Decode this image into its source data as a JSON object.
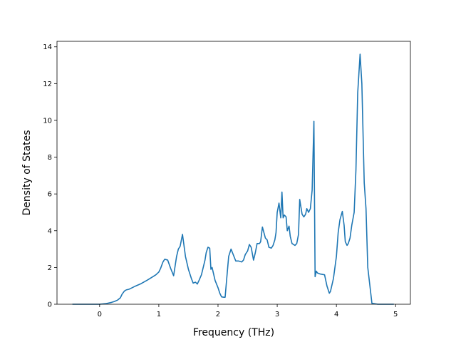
{
  "chart_data": {
    "type": "line",
    "title": "",
    "xlabel": "Frequency (THz)",
    "ylabel": "Density of States",
    "xlim": [
      -0.72,
      5.25
    ],
    "ylim": [
      0,
      14.3
    ],
    "xticks": [
      0,
      1,
      2,
      3,
      4,
      5
    ],
    "yticks": [
      0,
      2,
      4,
      6,
      8,
      10,
      12,
      14
    ],
    "xtick_labels": [
      "0",
      "1",
      "2",
      "3",
      "4",
      "5"
    ],
    "ytick_labels": [
      "0",
      "2",
      "4",
      "6",
      "8",
      "10",
      "12",
      "14"
    ],
    "grid": false,
    "legend": "none",
    "line_color": "#1f77b4",
    "series": [
      {
        "x": [
          -0.46,
          -0.3,
          -0.1,
          0.0,
          0.1,
          0.2,
          0.25,
          0.3,
          0.35,
          0.38,
          0.42,
          0.45,
          0.5,
          0.55,
          0.6,
          0.7,
          0.8,
          0.9,
          0.95,
          1.0,
          1.03,
          1.07,
          1.1,
          1.15,
          1.2,
          1.25,
          1.3,
          1.33,
          1.36,
          1.4,
          1.45,
          1.5,
          1.55,
          1.58,
          1.62,
          1.65,
          1.68,
          1.72,
          1.78,
          1.8,
          1.83,
          1.86,
          1.88,
          1.9,
          1.95,
          2.0,
          2.03,
          2.06,
          2.1,
          2.12,
          2.15,
          2.18,
          2.2,
          2.22,
          2.3,
          2.35,
          2.4,
          2.43,
          2.46,
          2.5,
          2.53,
          2.56,
          2.6,
          2.63,
          2.66,
          2.7,
          2.72,
          2.75,
          2.8,
          2.83,
          2.86,
          2.9,
          2.93,
          2.96,
          2.98,
          3.0,
          3.03,
          3.06,
          3.08,
          3.1,
          3.12,
          3.15,
          3.17,
          3.2,
          3.22,
          3.25,
          3.3,
          3.33,
          3.36,
          3.38,
          3.42,
          3.45,
          3.48,
          3.5,
          3.53,
          3.56,
          3.59,
          3.62,
          3.64,
          3.66,
          3.68,
          3.72,
          3.8,
          3.84,
          3.88,
          3.9,
          3.95,
          4.0,
          4.03,
          4.06,
          4.1,
          4.13,
          4.15,
          4.18,
          4.2,
          4.23,
          4.26,
          4.3,
          4.33,
          4.36,
          4.4,
          4.43,
          4.47,
          4.5,
          4.53,
          4.6,
          4.7,
          4.8,
          4.9,
          4.97
        ],
        "y": [
          0,
          0,
          0,
          0,
          0.03,
          0.1,
          0.15,
          0.22,
          0.35,
          0.55,
          0.72,
          0.78,
          0.82,
          0.9,
          0.98,
          1.12,
          1.3,
          1.5,
          1.6,
          1.75,
          1.95,
          2.3,
          2.45,
          2.4,
          1.95,
          1.55,
          2.6,
          3.0,
          3.15,
          3.8,
          2.6,
          1.9,
          1.4,
          1.15,
          1.2,
          1.1,
          1.3,
          1.6,
          2.4,
          2.8,
          3.1,
          3.05,
          1.9,
          2.0,
          1.3,
          0.9,
          0.6,
          0.4,
          0.38,
          0.38,
          1.5,
          2.6,
          2.8,
          3.0,
          2.35,
          2.35,
          2.3,
          2.4,
          2.7,
          2.9,
          3.25,
          3.1,
          2.4,
          2.8,
          3.3,
          3.3,
          3.4,
          4.2,
          3.6,
          3.5,
          3.1,
          3.05,
          3.2,
          3.5,
          3.9,
          5.0,
          5.5,
          4.7,
          6.1,
          4.7,
          4.85,
          4.75,
          4.0,
          4.25,
          3.7,
          3.3,
          3.2,
          3.3,
          3.8,
          5.7,
          4.9,
          4.75,
          4.9,
          5.2,
          5.0,
          5.2,
          6.2,
          9.95,
          1.5,
          1.8,
          1.7,
          1.65,
          1.6,
          1.0,
          0.6,
          0.7,
          1.4,
          2.6,
          3.9,
          4.6,
          5.05,
          4.3,
          3.4,
          3.2,
          3.3,
          3.6,
          4.3,
          5.0,
          7.3,
          11.5,
          13.6,
          12.0,
          6.6,
          5.2,
          2.0,
          0.05,
          0,
          0,
          0,
          0
        ]
      }
    ]
  }
}
